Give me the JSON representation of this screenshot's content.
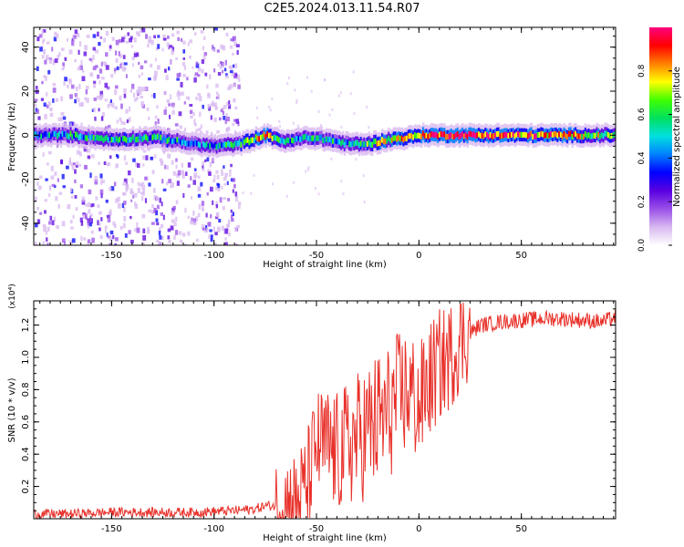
{
  "title": "C2E5.2024.013.11.54.R07",
  "chart_data": [
    {
      "type": "heatmap",
      "xlabel": "Height of straight line (km)",
      "ylabel": "Frequency (Hz)",
      "xlim": [
        -188,
        96
      ],
      "ylim": [
        -50,
        49
      ],
      "xticks": [
        -150,
        -100,
        -50,
        0,
        50
      ],
      "yticks": [
        -40,
        -20,
        0,
        20,
        40
      ],
      "colorbar": {
        "label": "Normalized spectral amplitude",
        "range": [
          0,
          1
        ],
        "ticks": [
          "0.0",
          "0.2",
          "0.4",
          "0.6",
          "0.8"
        ],
        "colors": [
          "#ffffff",
          "#d8b8f0",
          "#9a50e8",
          "#5a00e0",
          "#0000ff",
          "#0080ff",
          "#00e0e0",
          "#00e060",
          "#40ff00",
          "#ffff00",
          "#ff8000",
          "#ff0000",
          "#ff0080"
        ]
      },
      "ridge": {
        "x": [
          -188,
          -170,
          -150,
          -130,
          -110,
          -100,
          -88,
          -75,
          -65,
          -55,
          -45,
          -35,
          -25,
          -15,
          -5,
          0,
          10,
          20,
          30,
          50,
          70,
          96
        ],
        "freq": [
          0,
          0,
          -2,
          -1,
          -4,
          -5,
          -4,
          0,
          -3,
          -1,
          -2,
          -4,
          -4,
          -2,
          -1,
          0,
          0,
          0,
          0,
          0,
          0,
          0
        ],
        "amplitude": [
          0.45,
          0.5,
          0.5,
          0.5,
          0.45,
          0.45,
          0.5,
          0.8,
          0.5,
          0.55,
          0.5,
          0.5,
          0.6,
          0.75,
          0.8,
          0.85,
          0.9,
          0.95,
          0.9,
          0.85,
          0.8,
          0.6
        ],
        "noise_region": [
          -188,
          -88
        ]
      }
    },
    {
      "type": "line",
      "xlabel": "Height of straight line (km)",
      "ylabel": "SNR (10 * v/v)",
      "multiplier": "(x10⁴)",
      "xlim": [
        -188,
        96
      ],
      "ylim": [
        0,
        1.35
      ],
      "xticks": [
        -150,
        -100,
        -50,
        0,
        50
      ],
      "yticks": [
        0.2,
        0.4,
        0.6,
        0.8,
        1.0,
        1.2
      ],
      "color": "#e8312a",
      "series": [
        {
          "x": [
            -188,
            -170,
            -150,
            -130,
            -110,
            -90,
            -80,
            -75,
            -70,
            -65,
            -60,
            -55,
            -50,
            -45,
            -40,
            -35,
            -30,
            -25,
            -20,
            -15,
            -10,
            -5,
            0,
            5,
            10,
            15,
            20,
            25,
            30,
            40,
            50,
            60,
            70,
            80,
            90,
            96
          ],
          "y": [
            0.03,
            0.03,
            0.04,
            0.04,
            0.04,
            0.05,
            0.06,
            0.08,
            0.08,
            0.1,
            0.1,
            0.2,
            0.45,
            0.45,
            0.4,
            0.45,
            0.5,
            0.55,
            0.6,
            0.65,
            0.75,
            0.8,
            0.7,
            0.85,
            0.95,
            1.0,
            1.1,
            1.15,
            1.2,
            1.22,
            1.23,
            1.24,
            1.24,
            1.23,
            1.22,
            1.25
          ]
        }
      ]
    }
  ]
}
